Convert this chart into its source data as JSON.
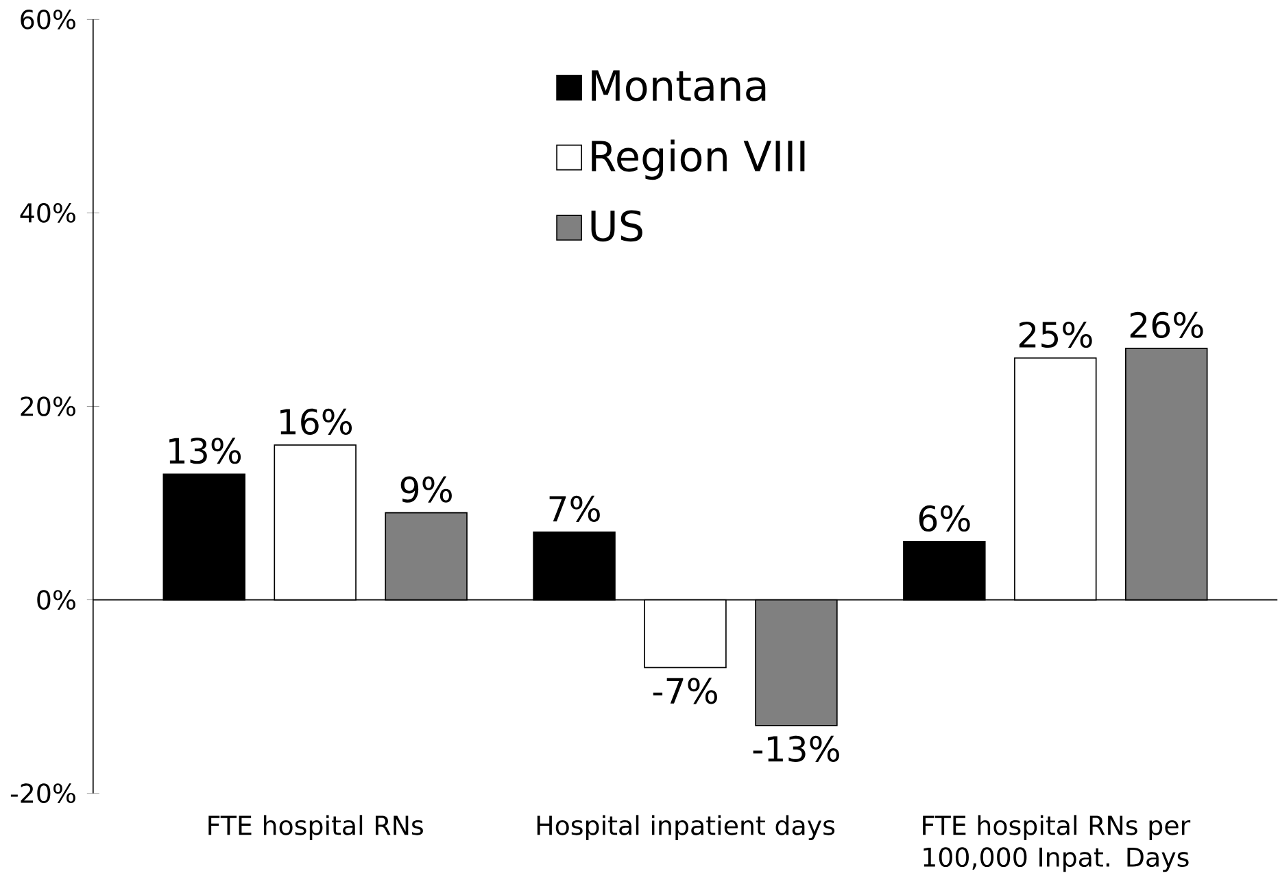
{
  "chart_data": {
    "type": "bar",
    "categories": [
      "FTE hospital RNs",
      "Hospital inpatient days",
      "FTE hospital RNs per 100,000 Inpat. Days"
    ],
    "series": [
      {
        "name": "Montana",
        "color": "#000000",
        "values": [
          13,
          7,
          6
        ],
        "value_labels": [
          "13%",
          "7%",
          "6%"
        ]
      },
      {
        "name": "Region VIII",
        "color": "#ffffff",
        "values": [
          16,
          -7,
          25
        ],
        "value_labels": [
          "16%",
          "-7%",
          "25%"
        ]
      },
      {
        "name": "US",
        "color": "#808080",
        "values": [
          9,
          -13,
          26
        ],
        "value_labels": [
          "9%",
          "-13%",
          "26%"
        ]
      }
    ],
    "ylim": [
      -20,
      60
    ],
    "yticks": [
      {
        "value": -20,
        "label": "-20%"
      },
      {
        "value": 0,
        "label": "0%"
      },
      {
        "value": 20,
        "label": "20%"
      },
      {
        "value": 40,
        "label": "40%"
      },
      {
        "value": 60,
        "label": "60%"
      }
    ],
    "legend": "top"
  }
}
